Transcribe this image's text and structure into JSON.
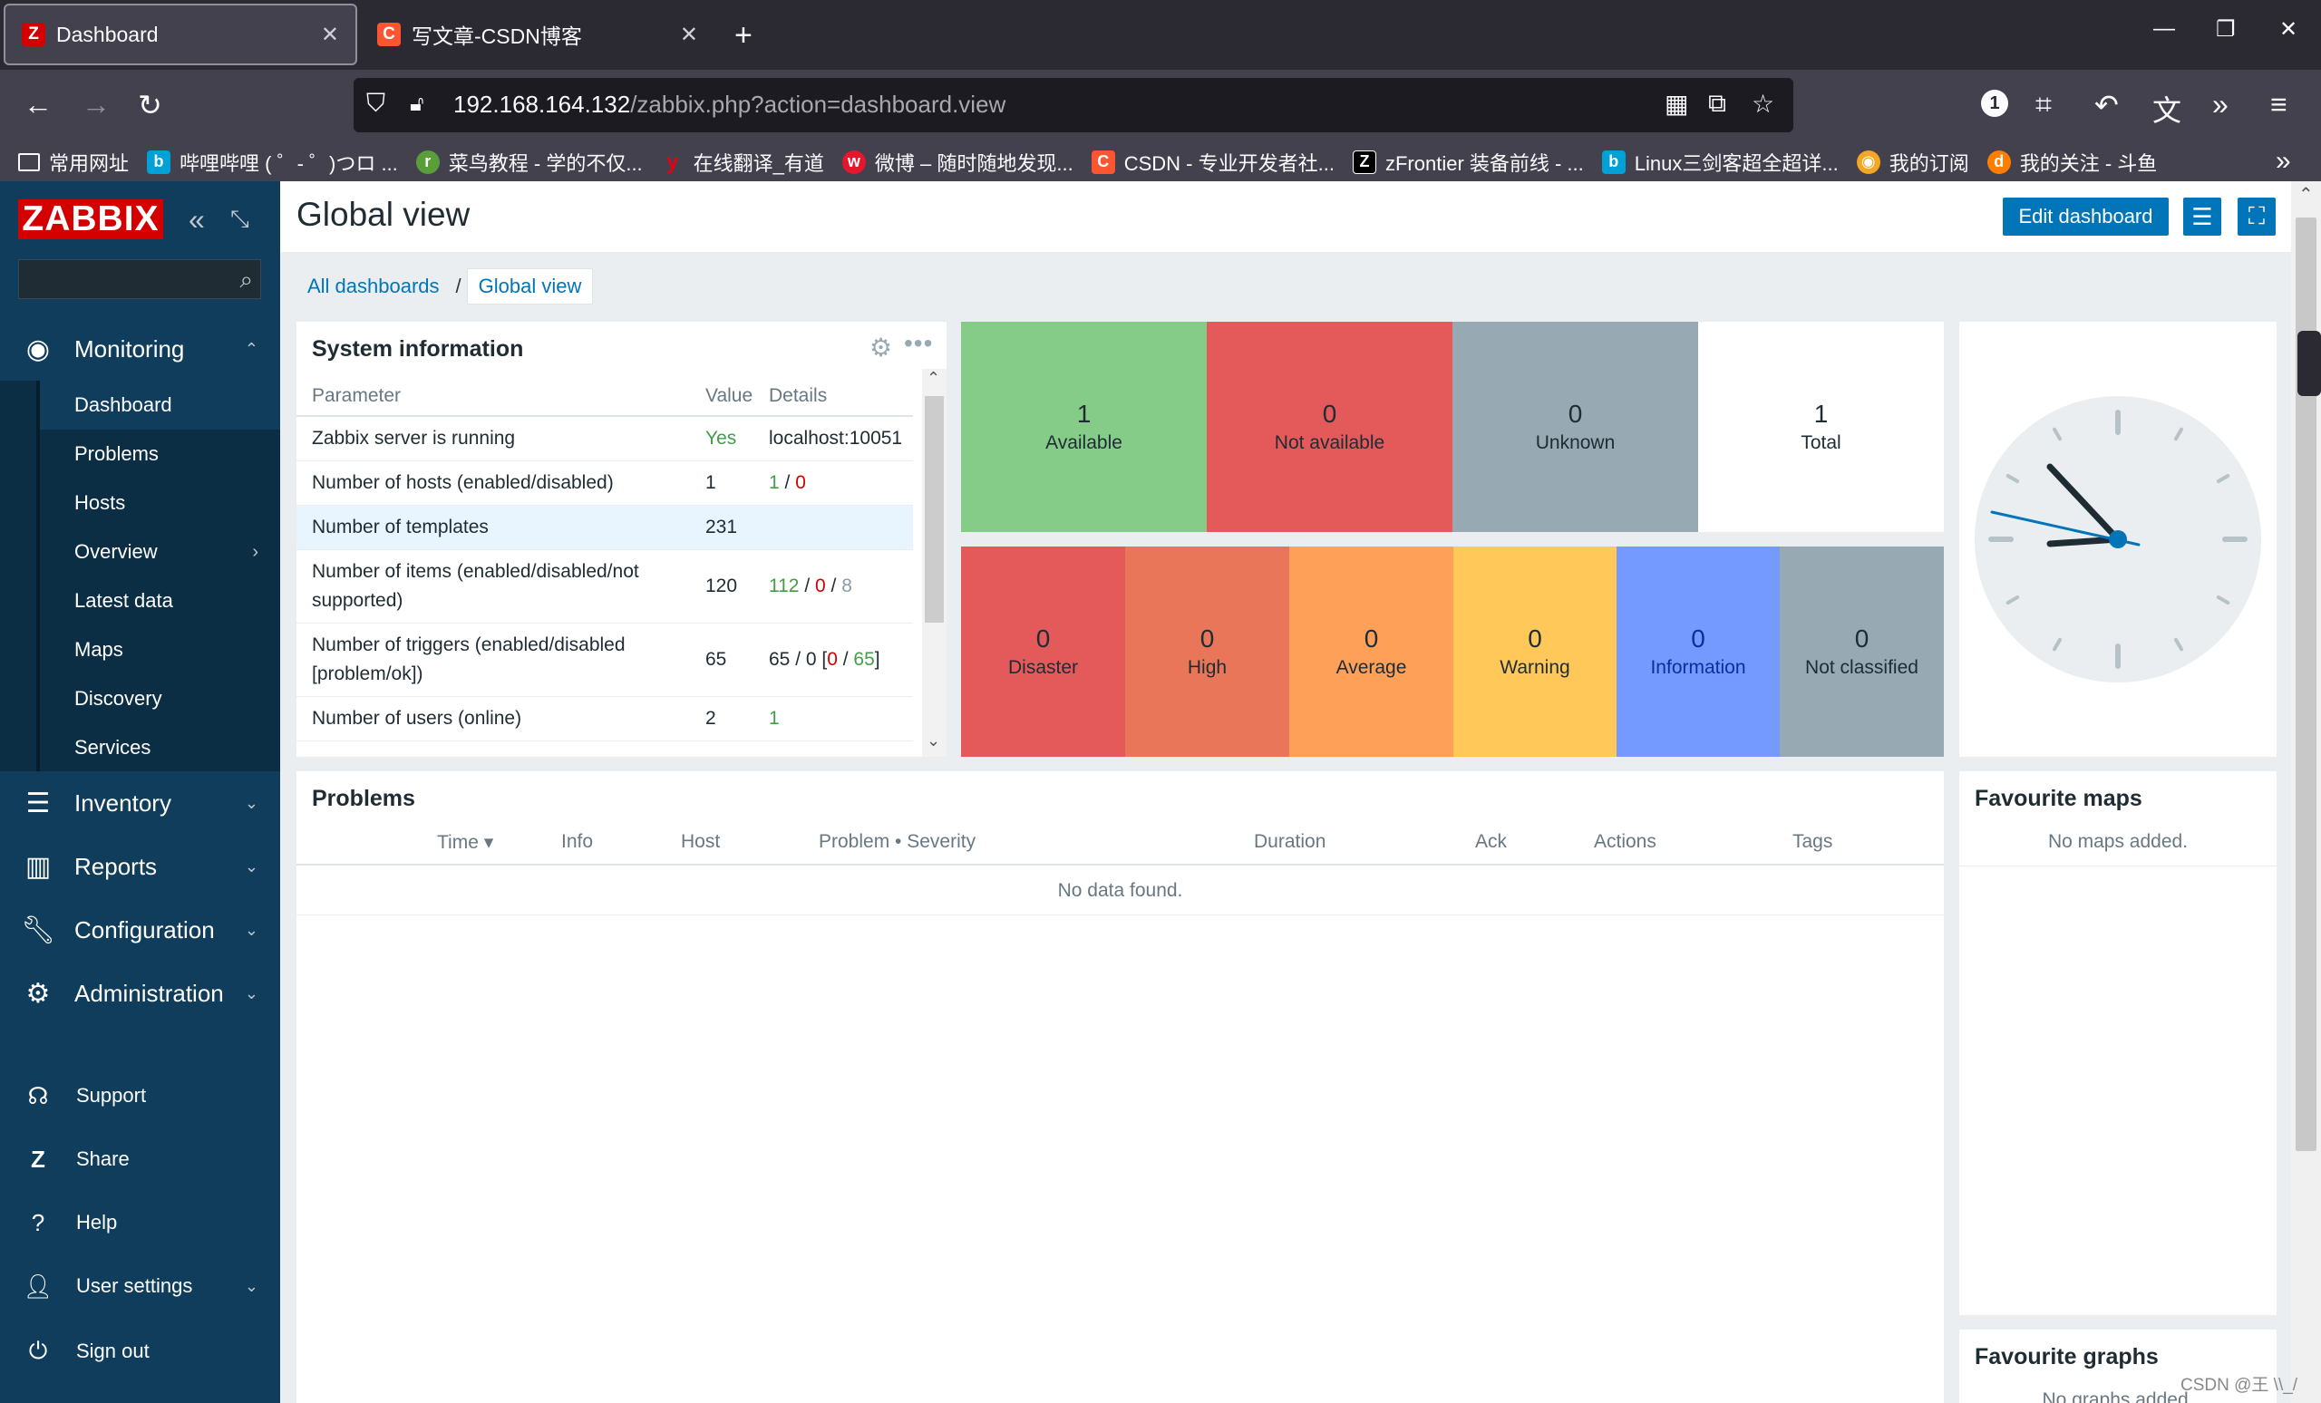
{
  "browser": {
    "tabs": [
      {
        "title": "Dashboard",
        "favicon": "Z"
      },
      {
        "title": "写文章-CSDN博客",
        "favicon": "C"
      }
    ],
    "url_host": "192.168.164.132",
    "url_path": "/zabbix.php?action=dashboard.view",
    "bookmarks": [
      "常用网址",
      "哔哩哔哩 ( ゜- ゜)つロ ...",
      "菜鸟教程 - 学的不仅...",
      "在线翻译_有道",
      "微博 – 随时随地发现...",
      "CSDN - 专业开发者社...",
      "zFrontier 装备前线 - ...",
      "Linux三剑客超全超详...",
      "我的订阅",
      "我的关注 - 斗鱼"
    ],
    "badge_count": "1"
  },
  "sidebar": {
    "logo": "ZABBIX",
    "menu": {
      "monitoring": "Monitoring",
      "inventory": "Inventory",
      "reports": "Reports",
      "configuration": "Configuration",
      "administration": "Administration"
    },
    "submenu": [
      "Dashboard",
      "Problems",
      "Hosts",
      "Overview",
      "Latest data",
      "Maps",
      "Discovery",
      "Services"
    ],
    "bottom": [
      "Support",
      "Share",
      "Help",
      "User settings",
      "Sign out"
    ]
  },
  "header": {
    "title": "Global view",
    "edit_button": "Edit dashboard",
    "breadcrumb_all": "All dashboards",
    "breadcrumb_sep": "/",
    "breadcrumb_current": "Global view"
  },
  "system_info": {
    "title": "System information",
    "columns": [
      "Parameter",
      "Value",
      "Details"
    ],
    "rows": [
      {
        "param": "Zabbix server is running",
        "value": "Yes",
        "details": "localhost:10051"
      },
      {
        "param": "Number of hosts (enabled/disabled)",
        "value": "1",
        "d1": "1",
        "s1": " / ",
        "d2": "0"
      },
      {
        "param": "Number of templates",
        "value": "231"
      },
      {
        "param": "Number of items (enabled/disabled/not supported)",
        "value": "120",
        "d1": "112",
        "s1": " / ",
        "d2": "0",
        "s2": " / ",
        "d3": "8"
      },
      {
        "param": "Number of triggers (enabled/disabled [problem/ok])",
        "value": "65",
        "pre": "65 / 0 [",
        "d1": "0",
        "s1": " / ",
        "d2": "65",
        "post": "]"
      },
      {
        "param": "Number of users (online)",
        "value": "2",
        "d1": "1"
      }
    ]
  },
  "host_availability": [
    {
      "count": "1",
      "label": "Available",
      "color": "#86cc89"
    },
    {
      "count": "0",
      "label": "Not available",
      "color": "#e45959"
    },
    {
      "count": "0",
      "label": "Unknown",
      "color": "#97aab3"
    },
    {
      "count": "1",
      "label": "Total",
      "color": "#ffffff"
    }
  ],
  "problems_by_severity": [
    {
      "count": "0",
      "label": "Disaster",
      "color": "#e45959"
    },
    {
      "count": "0",
      "label": "High",
      "color": "#e97659"
    },
    {
      "count": "0",
      "label": "Average",
      "color": "#ffa059"
    },
    {
      "count": "0",
      "label": "Warning",
      "color": "#ffc859"
    },
    {
      "count": "0",
      "label": "Information",
      "color": "#7499ff"
    },
    {
      "count": "0",
      "label": "Not classified",
      "color": "#97aab3"
    }
  ],
  "problems": {
    "title": "Problems",
    "columns": [
      "Time ▾",
      "Info",
      "Host",
      "Problem • Severity",
      "Duration",
      "Ack",
      "Actions",
      "Tags"
    ],
    "empty": "No data found."
  },
  "favourite_maps": {
    "title": "Favourite maps",
    "empty": "No maps added."
  },
  "favourite_graphs": {
    "title": "Favourite graphs",
    "empty": "No graphs added."
  },
  "watermark": "CSDN @王 \\\\_/"
}
